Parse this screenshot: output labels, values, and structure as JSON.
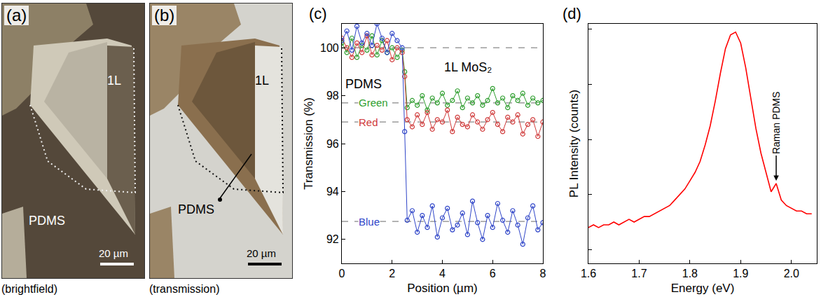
{
  "image_panels": [
    {
      "letter": "(a)",
      "caption": "(brightfield)",
      "region": "1L",
      "substrate": "PDMS",
      "scale_bar": "20 µm"
    },
    {
      "letter": "(b)",
      "caption": "(transmission)",
      "region": "1L",
      "substrate": "PDMS",
      "scale_bar": "20 µm"
    }
  ],
  "chart_data": [
    {
      "letter": "(c)",
      "type": "scatter",
      "x_label": "Position (µm)",
      "y_label": "Transmission (%)",
      "xlim": [
        0,
        8
      ],
      "ylim": [
        91,
        101
      ],
      "xticks": [
        0,
        2,
        4,
        6,
        8
      ],
      "yticks": [
        92,
        94,
        96,
        98,
        100
      ],
      "marker": "circle-open",
      "line_style": "solid",
      "reference_level": 100,
      "annotations": [
        {
          "text": "PDMS"
        },
        {
          "text": "1L MoS₂"
        }
      ],
      "x": [
        0,
        0.2,
        0.4,
        0.6,
        0.8,
        1.0,
        1.2,
        1.4,
        1.6,
        1.8,
        2.0,
        2.2,
        2.4,
        2.5,
        2.6,
        2.8,
        3.0,
        3.2,
        3.4,
        3.6,
        3.8,
        4.0,
        4.2,
        4.4,
        4.6,
        4.8,
        5.0,
        5.2,
        5.4,
        5.6,
        5.8,
        6.0,
        6.2,
        6.4,
        6.6,
        6.8,
        7.0,
        7.2,
        7.4,
        7.6,
        7.8,
        8.0
      ],
      "series": [
        {
          "name": "Green",
          "color": "#2e9e2e",
          "level": 97.7,
          "values": [
            100.2,
            99.8,
            100.4,
            99.6,
            100.1,
            99.9,
            100.5,
            99.7,
            100.3,
            99.8,
            100.0,
            99.6,
            99.9,
            99.0,
            97.5,
            97.8,
            97.6,
            98.0,
            97.4,
            97.9,
            97.7,
            98.1,
            97.6,
            97.8,
            98.2,
            97.5,
            97.9,
            97.7,
            98.0,
            97.6,
            97.8,
            98.3,
            97.7,
            97.9,
            97.5,
            98.0,
            97.8,
            98.1,
            97.6,
            97.9,
            97.7,
            97.8
          ]
        },
        {
          "name": "Red",
          "color": "#d03a3a",
          "level": 96.9,
          "values": [
            100.4,
            100.0,
            99.6,
            100.2,
            99.8,
            100.5,
            99.7,
            100.1,
            99.9,
            100.3,
            99.5,
            100.0,
            99.8,
            98.8,
            97.0,
            96.7,
            97.2,
            96.8,
            97.3,
            96.6,
            97.0,
            96.9,
            97.4,
            96.5,
            97.1,
            96.8,
            96.7,
            97.2,
            96.9,
            96.6,
            97.0,
            97.3,
            96.8,
            96.5,
            97.1,
            96.9,
            97.2,
            96.4,
            96.8,
            97.0,
            96.3,
            96.9
          ]
        },
        {
          "name": "Blue",
          "color": "#2f45c8",
          "level": 92.75,
          "values": [
            100.3,
            100.7,
            99.9,
            100.9,
            100.2,
            100.6,
            100.1,
            101.0,
            100.4,
            99.8,
            100.6,
            100.3,
            100.0,
            96.5,
            92.8,
            93.2,
            92.3,
            93.0,
            92.5,
            93.4,
            92.1,
            92.9,
            93.3,
            92.4,
            92.6,
            93.1,
            92.2,
            93.6,
            92.7,
            92.0,
            93.0,
            92.5,
            93.5,
            92.8,
            92.3,
            93.2,
            92.6,
            91.8,
            92.9,
            93.4,
            92.4,
            92.7
          ]
        }
      ]
    },
    {
      "letter": "(d)",
      "type": "line",
      "x_label": "Energy (eV)",
      "y_label": "PL Intensity (counts)",
      "xlim": [
        1.6,
        2.05
      ],
      "xticks": [
        1.6,
        1.7,
        1.8,
        1.9,
        {
          "value": 2.0,
          "label": "2.0"
        }
      ],
      "ylim": [
        15,
        102
      ],
      "yticks": [
        20,
        40,
        60,
        80,
        100
      ],
      "tick_labels": "x",
      "color": "#ff0000",
      "annotations": [
        {
          "text": "Raman PDMS",
          "x": 1.97,
          "y": 45
        }
      ],
      "x": [
        1.6,
        1.61,
        1.62,
        1.63,
        1.64,
        1.65,
        1.66,
        1.67,
        1.68,
        1.69,
        1.7,
        1.71,
        1.72,
        1.73,
        1.74,
        1.75,
        1.76,
        1.77,
        1.78,
        1.79,
        1.8,
        1.81,
        1.82,
        1.83,
        1.84,
        1.85,
        1.86,
        1.87,
        1.88,
        1.89,
        1.9,
        1.91,
        1.92,
        1.93,
        1.94,
        1.95,
        1.96,
        1.97,
        1.98,
        1.99,
        2.0,
        2.01,
        2.02,
        2.03,
        2.04
      ],
      "values": [
        28,
        29,
        28,
        29,
        29,
        30,
        29,
        30,
        31,
        30,
        31,
        32,
        32,
        33,
        34,
        35,
        36,
        38,
        40,
        42,
        45,
        48,
        52,
        58,
        65,
        74,
        84,
        93,
        98,
        99,
        95,
        86,
        75,
        64,
        55,
        48,
        41,
        44,
        38,
        36,
        35,
        34,
        34,
        33,
        33
      ]
    }
  ]
}
